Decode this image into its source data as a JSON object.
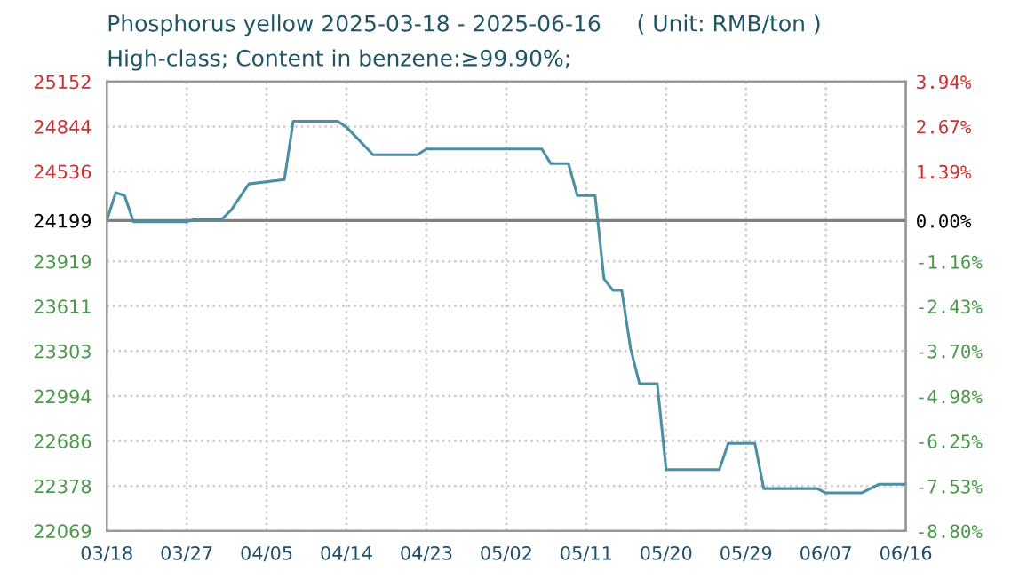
{
  "chart_data": {
    "type": "line",
    "title": "Phosphorus yellow 2025-03-18 - 2025-06-16     ( Unit: RMB/ton )",
    "subtitle": "High-class; Content in benzene:≥99.90%;",
    "x": [
      "2025-03-18",
      "2025-03-19",
      "2025-03-20",
      "2025-03-21",
      "2025-03-27",
      "2025-03-28",
      "2025-03-31",
      "2025-04-01",
      "2025-04-03",
      "2025-04-07",
      "2025-04-08",
      "2025-04-13",
      "2025-04-14",
      "2025-04-17",
      "2025-04-22",
      "2025-04-23",
      "2025-05-06",
      "2025-05-07",
      "2025-05-09",
      "2025-05-10",
      "2025-05-12",
      "2025-05-13",
      "2025-05-14",
      "2025-05-15",
      "2025-05-16",
      "2025-05-17",
      "2025-05-19",
      "2025-05-20",
      "2025-05-26",
      "2025-05-27",
      "2025-05-30",
      "2025-05-31",
      "2025-06-06",
      "2025-06-07",
      "2025-06-11",
      "2025-06-13",
      "2025-06-16"
    ],
    "series": [
      {
        "color": "#4a8fa3",
        "values": [
          24199,
          24390,
          24370,
          24190,
          24190,
          24210,
          24210,
          24270,
          24450,
          24480,
          24880,
          24880,
          24840,
          24650,
          24650,
          24690,
          24690,
          24590,
          24590,
          24370,
          24370,
          23800,
          23720,
          23720,
          23320,
          23080,
          23080,
          22490,
          22490,
          22670,
          22670,
          22360,
          22360,
          22330,
          22330,
          22390,
          22390
        ]
      }
    ],
    "xlim": [
      "2025-03-18",
      "2025-06-16"
    ],
    "xticks": [
      {
        "value": "2025-03-18",
        "label": "03/18"
      },
      {
        "value": "2025-03-27",
        "label": "03/27"
      },
      {
        "value": "2025-04-05",
        "label": "04/05"
      },
      {
        "value": "2025-04-14",
        "label": "04/14"
      },
      {
        "value": "2025-04-23",
        "label": "04/23"
      },
      {
        "value": "2025-05-02",
        "label": "05/02"
      },
      {
        "value": "2025-05-11",
        "label": "05/11"
      },
      {
        "value": "2025-05-20",
        "label": "05/20"
      },
      {
        "value": "2025-05-29",
        "label": "05/29"
      },
      {
        "value": "2025-06-07",
        "label": "06/07"
      },
      {
        "value": "2025-06-16",
        "label": "06/16"
      }
    ],
    "ylim": [
      22069,
      25152
    ],
    "yticks": [
      25152,
      24844,
      24536,
      24199,
      23919,
      23611,
      23303,
      22994,
      22686,
      22378,
      22069
    ],
    "y2lim": [
      -8.8,
      3.94
    ],
    "y2ticks": [
      {
        "value": 3.94,
        "label": "3.94%"
      },
      {
        "value": 2.67,
        "label": "2.67%"
      },
      {
        "value": 1.39,
        "label": "1.39%"
      },
      {
        "value": 0.0,
        "label": "0.00%"
      },
      {
        "value": -1.16,
        "label": "-1.16%"
      },
      {
        "value": -2.43,
        "label": "-2.43%"
      },
      {
        "value": -3.7,
        "label": "-3.70%"
      },
      {
        "value": -4.98,
        "label": "-4.98%"
      },
      {
        "value": -6.25,
        "label": "-6.25%"
      },
      {
        "value": -7.53,
        "label": "-7.53%"
      },
      {
        "value": -8.8,
        "label": "-8.80%"
      }
    ],
    "ref_lines": [
      {
        "axis": "y",
        "value": 24199,
        "color": "#808080"
      }
    ],
    "grid": true,
    "marker": "none",
    "line_style": "solid"
  }
}
